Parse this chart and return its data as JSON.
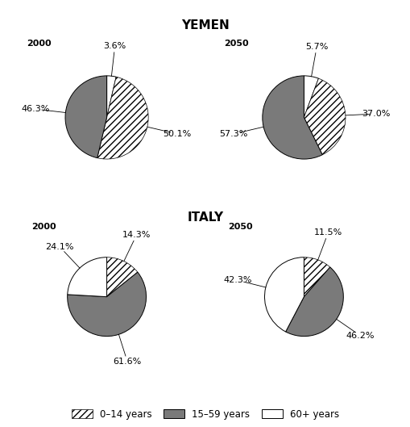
{
  "chart_data": [
    {
      "values": [
        3.6,
        50.1,
        46.3
      ],
      "colors": [
        "white",
        "white",
        "#7a7a7a"
      ],
      "hatches": [
        null,
        "////",
        null
      ],
      "labels": [
        "3.6%",
        "50.1%",
        "46.3%"
      ],
      "startangle": 90,
      "counterclock": false,
      "year": "2000",
      "row": 0,
      "col": 0
    },
    {
      "values": [
        5.7,
        37.0,
        57.3
      ],
      "colors": [
        "white",
        "white",
        "#7a7a7a"
      ],
      "hatches": [
        null,
        "////",
        null
      ],
      "labels": [
        "5.7%",
        "37.0%",
        "57.3%"
      ],
      "startangle": 90,
      "counterclock": false,
      "year": "2050",
      "row": 0,
      "col": 1
    },
    {
      "values": [
        14.3,
        61.6,
        24.1
      ],
      "colors": [
        "white",
        "#7a7a7a",
        "white"
      ],
      "hatches": [
        "////",
        null,
        null
      ],
      "labels": [
        "14.3%",
        "61.6%",
        "24.1%"
      ],
      "startangle": 90,
      "counterclock": false,
      "year": "2000",
      "row": 1,
      "col": 0
    },
    {
      "values": [
        11.5,
        46.2,
        42.3
      ],
      "colors": [
        "white",
        "#7a7a7a",
        "white"
      ],
      "hatches": [
        "////",
        null,
        null
      ],
      "labels": [
        "11.5%",
        "46.2%",
        "42.3%"
      ],
      "startangle": 90,
      "counterclock": false,
      "year": "2050",
      "row": 1,
      "col": 1
    }
  ],
  "title_yemen": "YEMEN",
  "title_italy": "ITALY",
  "background_color": "#ffffff",
  "dark_gray": "#7a7a7a",
  "title_fontsize": 11,
  "label_fontsize": 8,
  "year_fontsize": 8,
  "legend_labels": [
    "0–14 years",
    "15–59 years",
    "60+ years"
  ]
}
